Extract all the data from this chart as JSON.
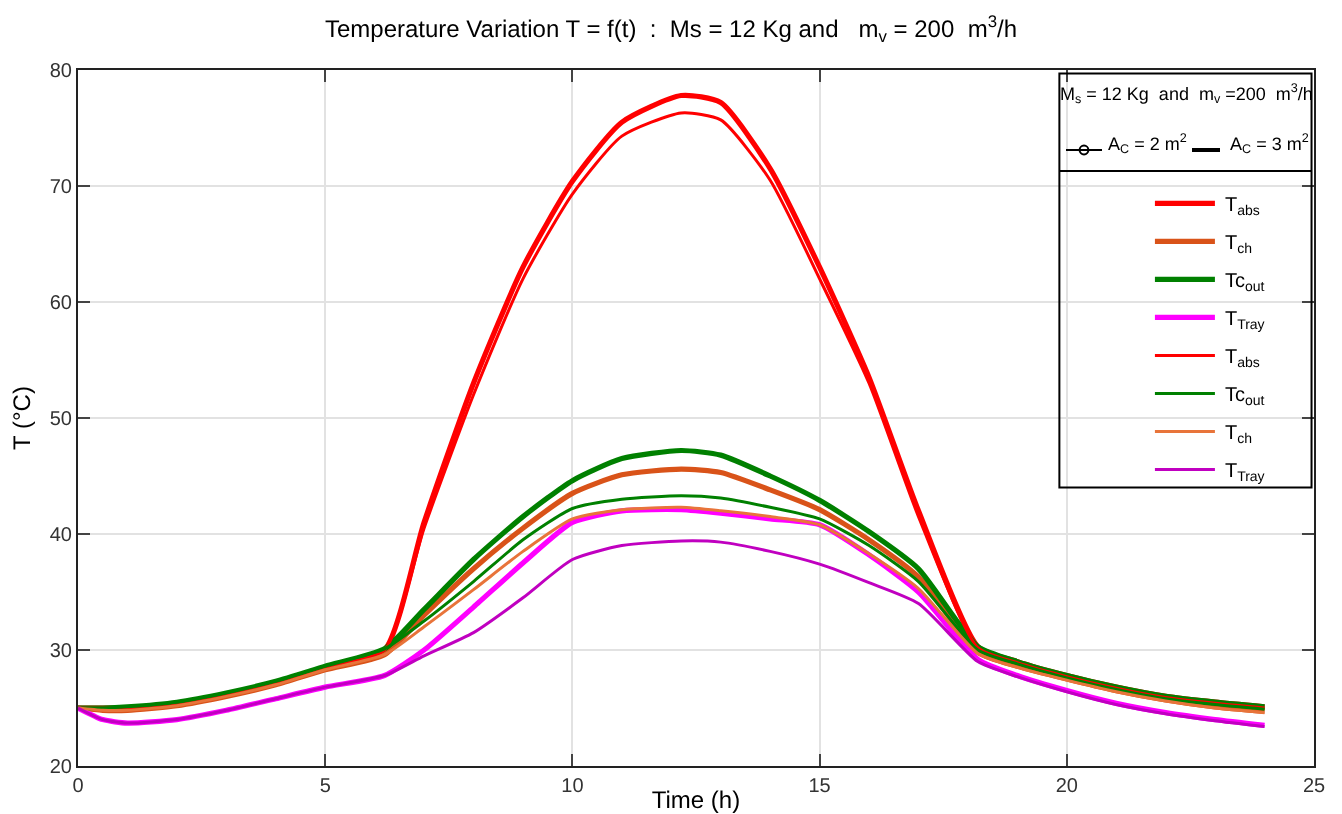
{
  "chart_data": {
    "type": "line",
    "title": "Temperature Variation T = f(t)  :  Ms = 12 Kg and   m$_{v}$ = 200  m$^{3}$/h",
    "xlabel": "Time (h)",
    "ylabel": "T (°C)",
    "x": [
      0,
      0.5,
      1,
      2,
      3,
      4,
      5,
      6.2,
      7,
      8,
      9,
      10,
      11,
      12.2,
      13,
      14,
      15,
      16,
      17,
      18.2,
      19,
      20,
      21,
      22,
      23,
      24
    ],
    "series": [
      {
        "name": "T$_{abs}$",
        "color": "#ff0000",
        "values": [
          25,
          25,
          25,
          25.4,
          26.2,
          27.2,
          28.5,
          30,
          41,
          53,
          63,
          70.4,
          75.5,
          77.8,
          77.2,
          71.5,
          63,
          53.5,
          42,
          30.3,
          29,
          27.8,
          26.8,
          26,
          25.5,
          25.1
        ]
      },
      {
        "name": "T$_{ch}$",
        "color": "#d95319",
        "values": [
          25,
          24.8,
          24.8,
          25.2,
          26,
          27,
          28.3,
          29.6,
          33,
          37,
          40.5,
          43.5,
          45.1,
          45.6,
          45.3,
          43.8,
          42.1,
          39.5,
          36.3,
          29.8,
          28.6,
          27.5,
          26.5,
          25.7,
          25.1,
          24.7
        ]
      },
      {
        "name": "Tc$_{out}$",
        "color": "#008000",
        "values": [
          25,
          25,
          25.1,
          25.5,
          26.3,
          27.3,
          28.6,
          30.1,
          33.5,
          37.8,
          41.5,
          44.6,
          46.5,
          47.2,
          46.8,
          45,
          42.9,
          40.2,
          37,
          30.3,
          29,
          27.8,
          26.8,
          26,
          25.5,
          25.1
        ]
      },
      {
        "name": "T$_{Tray}$",
        "color": "#ff00ff",
        "values": [
          25,
          24,
          23.7,
          24,
          24.8,
          25.8,
          26.8,
          27.8,
          30,
          33.7,
          37.5,
          41,
          42,
          42.1,
          41.8,
          41.3,
          40.8,
          38.2,
          35,
          29.2,
          27.8,
          26.5,
          25.4,
          24.6,
          24,
          23.5
        ]
      },
      {
        "name": "T$_{abs}$",
        "color": "#ff0000",
        "values": [
          25,
          25,
          25,
          25.4,
          26.2,
          27.2,
          28.5,
          30,
          40.5,
          52,
          62,
          69.3,
          74.3,
          76.3,
          75.7,
          70.5,
          62,
          53,
          41.5,
          30.2,
          28.9,
          27.7,
          26.7,
          25.9,
          25.4,
          25
        ]
      },
      {
        "name": "Tc$_{out}$",
        "color": "#008000",
        "values": [
          25,
          25,
          25.1,
          25.5,
          26.3,
          27.3,
          28.6,
          30.1,
          32.5,
          35.9,
          39.5,
          42.2,
          43,
          43.3,
          43.1,
          42.3,
          41.3,
          39,
          35.9,
          30,
          28.8,
          27.6,
          26.6,
          25.8,
          25.3,
          24.9
        ]
      },
      {
        "name": "T$_{ch}$",
        "color": "#e8743a",
        "values": [
          25,
          24.8,
          24.8,
          25.2,
          26,
          27,
          28.3,
          29.6,
          32,
          35.2,
          38.5,
          41.3,
          42.1,
          42.3,
          42,
          41.5,
          40.8,
          38.3,
          35.3,
          29.7,
          28.5,
          27.4,
          26.4,
          25.6,
          25,
          24.6
        ]
      },
      {
        "name": "T$_{Tray}$",
        "color": "#c000c0",
        "values": [
          25,
          24,
          23.7,
          24,
          24.8,
          25.8,
          26.8,
          27.8,
          29.5,
          31.5,
          34.5,
          37.8,
          39,
          39.4,
          39.3,
          38.5,
          37.4,
          35.8,
          34,
          29,
          27.7,
          26.4,
          25.3,
          24.5,
          23.9,
          23.4
        ]
      }
    ],
    "xlim": [
      0,
      25
    ],
    "xticks": [
      0,
      5,
      10,
      15,
      20,
      25
    ],
    "ylim": [
      20,
      80
    ],
    "yticks": [
      20,
      30,
      40,
      50,
      60,
      70,
      80
    ],
    "grid": true,
    "legend": "top right",
    "marker": "none",
    "line_style": "solid",
    "annotations": [
      "M$_{s}$ = 12 Kg  and  m$_{v}$ =200  m$^{3}$/h",
      "A$_{C}$ = 2 m$^{2}$",
      "A$_{C}$ = 3 m$^{2}$"
    ]
  }
}
